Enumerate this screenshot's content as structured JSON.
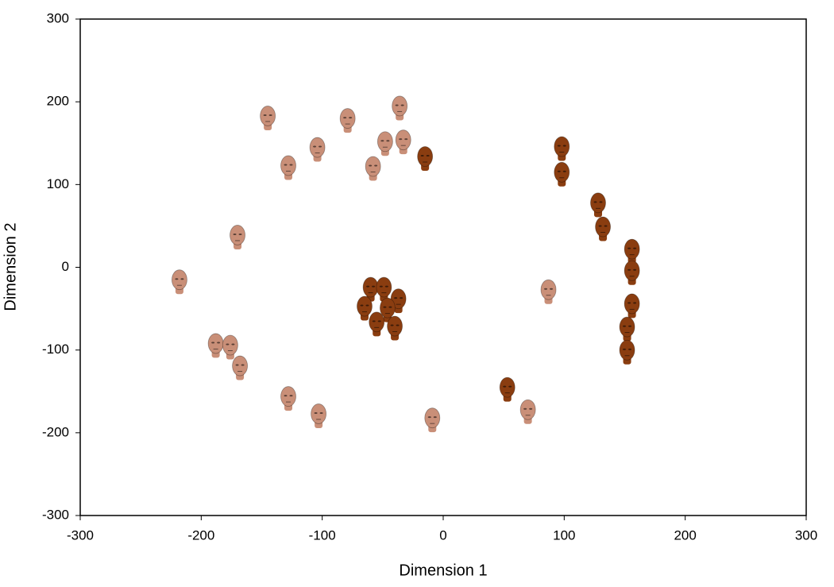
{
  "chart_data": {
    "type": "scatter",
    "x_label": "Dimension 1",
    "y_label": "Dimension 2",
    "xlim": [
      -300,
      300
    ],
    "xticks": [
      -300,
      -200,
      -100,
      0,
      100,
      200,
      300
    ],
    "ylim": [
      -300,
      300
    ],
    "yticks": [
      -300,
      -200,
      -100,
      0,
      100,
      200,
      300
    ],
    "series": [
      {
        "color": "#c98f78",
        "x": [
          -145,
          -79,
          -36,
          -48,
          -33,
          -104,
          -128,
          -58,
          -170,
          -218,
          -188,
          -176,
          -168,
          -128,
          -103,
          -9,
          87,
          70
        ],
        "values": [
          181,
          178,
          193,
          150,
          152,
          143,
          121,
          120,
          37,
          -17,
          -94,
          -96,
          -121,
          -158,
          -179,
          -184,
          -29,
          -174
        ]
      },
      {
        "color": "#8a3d10",
        "x": [
          -15,
          98,
          98,
          128,
          132,
          156,
          156,
          156,
          152,
          152,
          53,
          -60,
          -49,
          -37,
          -65,
          -46,
          -55,
          -40
        ],
        "values": [
          132,
          144,
          113,
          76,
          47,
          20,
          -6,
          -46,
          -74,
          -102,
          -147,
          -26,
          -26,
          -40,
          -49,
          -51,
          -68,
          -73
        ]
      }
    ]
  }
}
